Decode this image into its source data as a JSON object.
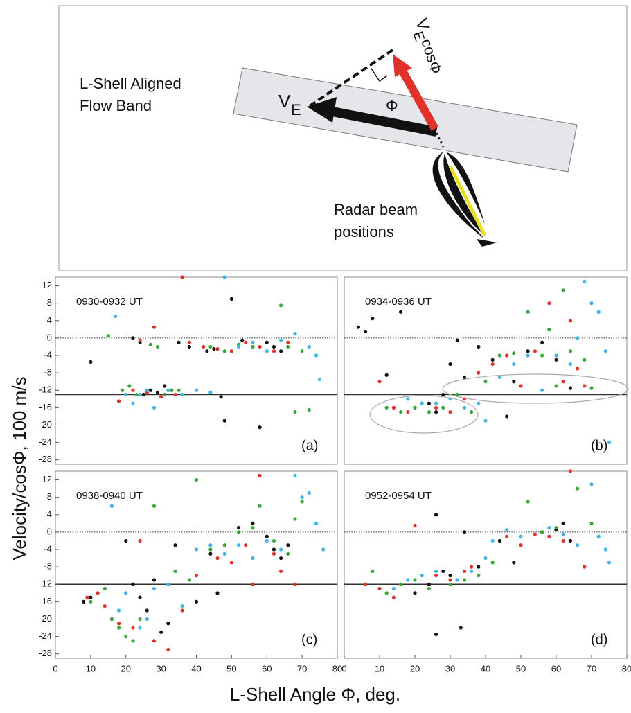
{
  "diagram": {
    "band_label": [
      "L-Shell Aligned",
      "Flow Band"
    ],
    "ve_label": "V",
    "ve_sub": "E",
    "vcos_label": "V",
    "vcos_sub": "E",
    "vcos_rest": "cosΦ",
    "phi_label": "Φ",
    "radar_label": [
      "Radar beam",
      "positions"
    ]
  },
  "shared": {
    "ylabel": "Velocity/cosΦ, 100 m/s",
    "xlabel": "L-Shell Angle  Φ, deg."
  },
  "chart_data": [
    {
      "type": "scatter",
      "title": "0930-0932 UT",
      "panel": "(a)",
      "xlim": [
        0,
        80
      ],
      "ylim": [
        -29,
        14
      ],
      "yticks": [
        12,
        8,
        4,
        0,
        -4,
        -8,
        -12,
        -16,
        -20,
        -24,
        -28
      ],
      "reference_lines": [
        {
          "value": 0,
          "style": "dotted"
        },
        {
          "value": -13,
          "style": "solid"
        }
      ],
      "series": [
        {
          "color": "#111111",
          "x": [
            10,
            22,
            24,
            25,
            27,
            29,
            31,
            33,
            35,
            38,
            43,
            45,
            47,
            48,
            50,
            53,
            58,
            60,
            62,
            64
          ],
          "values": [
            -5.5,
            0,
            -1,
            -13,
            -12,
            -12.5,
            -11,
            -12,
            -1,
            -2,
            -3,
            -2.5,
            -13.5,
            -19,
            9,
            -0.5,
            -20.5,
            -1,
            -2,
            -3
          ]
        },
        {
          "color": "#e0312a",
          "x": [
            18,
            20,
            22,
            24,
            26,
            28,
            30,
            32,
            34,
            36,
            38,
            42,
            46,
            50,
            54,
            58,
            62,
            66
          ],
          "values": [
            -14.5,
            -13,
            -12,
            -0.5,
            -12.5,
            2.5,
            -13.5,
            -12,
            -13,
            14,
            -1,
            -2,
            -2.5,
            -3,
            -1,
            -2,
            -3,
            -1
          ]
        },
        {
          "color": "#3aa83a",
          "x": [
            15,
            19,
            21,
            23,
            27,
            29,
            31,
            33,
            35,
            44,
            48,
            52,
            56,
            60,
            64,
            66,
            68,
            70,
            72
          ],
          "values": [
            0.5,
            -12,
            -11,
            -13,
            -1.5,
            -2,
            -13,
            -12,
            -12,
            -2,
            -3,
            -1.5,
            -2,
            -3,
            7.5,
            -2,
            -17,
            -3,
            -16.5
          ]
        },
        {
          "color": "#3fb6e8",
          "x": [
            17,
            20,
            22,
            24,
            26,
            28,
            32,
            36,
            40,
            44,
            48,
            52,
            56,
            60,
            64,
            68,
            72,
            74,
            75
          ],
          "values": [
            5,
            -13,
            -15,
            -13,
            -12,
            -16,
            -12,
            -13,
            -12,
            -12.5,
            14,
            -2,
            -1,
            -3,
            -0.5,
            1,
            -2,
            -4,
            -9.5
          ]
        }
      ]
    },
    {
      "type": "scatter",
      "title": "0934-0936 UT",
      "panel": "(b)",
      "xlim": [
        0,
        80
      ],
      "ylim": [
        -29,
        14
      ],
      "reference_lines": [
        {
          "value": 0,
          "style": "dotted"
        },
        {
          "value": -13,
          "style": "solid"
        }
      ],
      "series": [
        {
          "color": "#111111",
          "x": [
            4,
            6,
            8,
            12,
            16,
            20,
            24,
            26,
            28,
            30,
            32,
            34,
            38,
            42,
            46,
            48,
            52,
            56,
            60,
            64
          ],
          "values": [
            2.5,
            1.5,
            4.5,
            -8.5,
            6,
            -16,
            -15,
            -17,
            -13,
            -6,
            -0.5,
            -9,
            -2,
            -5,
            -18,
            -10,
            -3,
            -1,
            -5,
            -11.5
          ]
        },
        {
          "color": "#e0312a",
          "x": [
            10,
            14,
            18,
            22,
            26,
            30,
            34,
            38,
            42,
            46,
            50,
            54,
            58,
            60,
            62,
            64,
            66,
            68
          ],
          "values": [
            -10,
            -16,
            -17,
            -15,
            -16,
            -17,
            -14,
            -8,
            -6,
            -4,
            -11,
            -3,
            8,
            -4,
            -10,
            4,
            -7,
            -11
          ]
        },
        {
          "color": "#3aa83a",
          "x": [
            12,
            16,
            20,
            24,
            28,
            32,
            36,
            40,
            44,
            48,
            52,
            56,
            58,
            60,
            62,
            64,
            68,
            70
          ],
          "values": [
            -16,
            -17,
            -16,
            -17,
            -16,
            -13,
            -17,
            -10,
            -4,
            -3.5,
            6,
            -4,
            2,
            -11,
            11,
            -3,
            -5,
            -11.5
          ]
        },
        {
          "color": "#3fb6e8",
          "x": [
            18,
            22,
            26,
            30,
            34,
            38,
            40,
            44,
            48,
            52,
            56,
            60,
            64,
            66,
            68,
            70,
            72,
            74,
            75
          ],
          "values": [
            -14,
            -15,
            -15,
            -14,
            -16,
            -15,
            -19,
            -9,
            -6,
            -4,
            -12,
            -4,
            -6,
            0,
            13,
            8,
            6,
            -3,
            -24
          ]
        }
      ]
    },
    {
      "type": "scatter",
      "title": "0938-0940 UT",
      "panel": "(c)",
      "xlim": [
        0,
        80
      ],
      "ylim": [
        -29,
        14
      ],
      "xticks": [
        0,
        10,
        20,
        30,
        40,
        50,
        60,
        70,
        80
      ],
      "yticks": [
        12,
        8,
        4,
        0,
        -4,
        -8,
        {
          "value": -12,
          "label": "12"
        },
        {
          "value": -16,
          "label": "16"
        },
        {
          "value": -20,
          "label": "20"
        },
        -24,
        -28
      ],
      "reference_lines": [
        {
          "value": 0,
          "style": "dotted"
        },
        {
          "value": -12,
          "style": "solid"
        }
      ],
      "series": [
        {
          "color": "#111111",
          "x": [
            8,
            10,
            14,
            20,
            22,
            24,
            26,
            28,
            30,
            32,
            34,
            40,
            44,
            46,
            52,
            56,
            60,
            62,
            64,
            66
          ],
          "values": [
            -16,
            -15,
            -13,
            -2,
            -12,
            -15,
            -18,
            -11,
            -23,
            -21,
            -3,
            -16,
            -5,
            -14,
            1,
            2,
            -1,
            -4,
            -6,
            -3
          ]
        },
        {
          "color": "#e0312a",
          "x": [
            9,
            12,
            14,
            16,
            18,
            22,
            24,
            28,
            32,
            36,
            40,
            46,
            50,
            54,
            56,
            58,
            62,
            64,
            68
          ],
          "values": [
            -15,
            -14,
            -17,
            -20,
            -21,
            -22,
            -2,
            -25,
            -27,
            -18,
            -10,
            -6,
            -7,
            -3,
            -12,
            13,
            -5,
            -9,
            -12
          ]
        },
        {
          "color": "#3aa83a",
          "x": [
            10,
            14,
            16,
            18,
            20,
            22,
            24,
            28,
            34,
            38,
            40,
            44,
            48,
            52,
            56,
            58,
            62,
            66,
            68,
            70
          ],
          "values": [
            -16,
            -13,
            -20,
            -22,
            -24,
            -25,
            -20,
            6,
            -9,
            -11,
            12,
            -4,
            -3,
            0,
            1,
            6,
            -2,
            -5,
            3,
            7
          ]
        },
        {
          "color": "#3fb6e8",
          "x": [
            16,
            18,
            20,
            24,
            26,
            28,
            32,
            36,
            40,
            44,
            48,
            52,
            56,
            60,
            64,
            68,
            70,
            72,
            74,
            76
          ],
          "values": [
            6,
            -18,
            -14,
            -22,
            -20,
            -13,
            -12,
            -17,
            -4,
            -3,
            -5,
            -3,
            -6,
            -2,
            -4,
            13,
            8,
            9,
            2,
            -4
          ]
        }
      ]
    },
    {
      "type": "scatter",
      "title": "0952-0954 UT",
      "panel": "(d)",
      "xlim": [
        0,
        80
      ],
      "ylim": [
        -29,
        14
      ],
      "xticks": [
        0,
        10,
        20,
        30,
        40,
        50,
        60,
        70,
        80
      ],
      "reference_lines": [
        {
          "value": 0,
          "style": "dotted"
        },
        {
          "value": -12,
          "style": "solid"
        }
      ],
      "series": [
        {
          "color": "#111111",
          "x": [
            20,
            24,
            26,
            26,
            28,
            30,
            33,
            34,
            38,
            44,
            48,
            56,
            60,
            62,
            64
          ],
          "values": [
            -14,
            -12,
            4,
            -23.5,
            -9,
            -10,
            -22,
            0,
            -8,
            -2,
            -7,
            0,
            0.5,
            2,
            -2
          ]
        },
        {
          "color": "#e0312a",
          "x": [
            6,
            10,
            14,
            20,
            26,
            30,
            34,
            36,
            46,
            50,
            54,
            58,
            62,
            64,
            68
          ],
          "values": [
            -12,
            -13,
            -15,
            1.5,
            -10,
            -11,
            -9,
            -8,
            -1,
            -3,
            -0.5,
            -1,
            -2,
            14,
            -8
          ]
        },
        {
          "color": "#3aa83a",
          "x": [
            8,
            12,
            16,
            20,
            24,
            30,
            34,
            38,
            42,
            52,
            56,
            60,
            66,
            70,
            72
          ],
          "values": [
            -9,
            -14,
            -12,
            -11,
            -13,
            -12,
            -11,
            -10,
            -7,
            7,
            0,
            1,
            10,
            2,
            -1
          ]
        },
        {
          "color": "#3fb6e8",
          "x": [
            14,
            18,
            22,
            26,
            32,
            36,
            40,
            42,
            46,
            50,
            58,
            62,
            66,
            70,
            72,
            74,
            75
          ],
          "values": [
            -13,
            -11,
            -10,
            -9,
            -11,
            -9,
            -6,
            -2,
            0.5,
            -1,
            1,
            -0.5,
            -3,
            11,
            -1,
            -4,
            -7
          ]
        }
      ]
    }
  ]
}
